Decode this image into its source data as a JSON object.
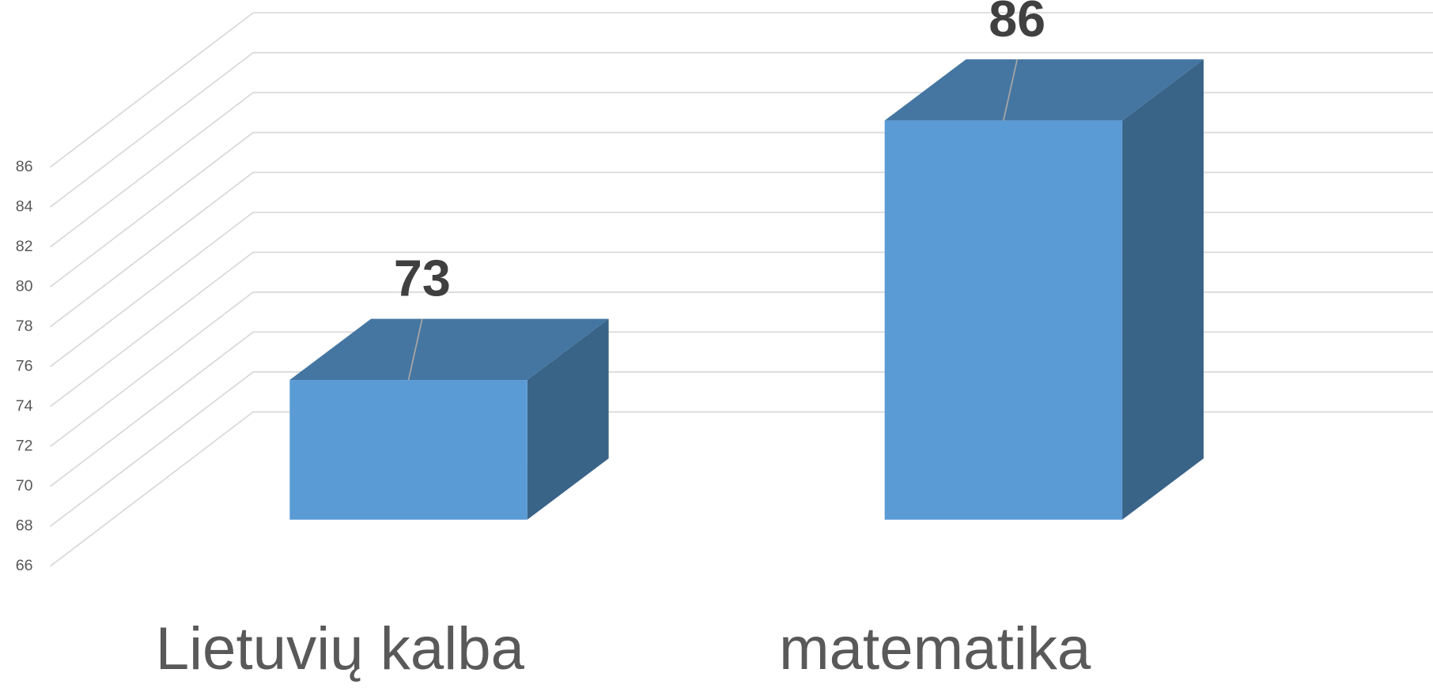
{
  "chart_data": {
    "type": "bar3d",
    "categories": [
      "Lietuvių kalba",
      "matematika"
    ],
    "values": [
      73,
      86
    ],
    "color": "#5b9bd5",
    "ylim": [
      66,
      86
    ],
    "yticks": [
      66,
      68,
      70,
      72,
      74,
      76,
      78,
      80,
      82,
      84,
      86
    ],
    "grid": true
  }
}
